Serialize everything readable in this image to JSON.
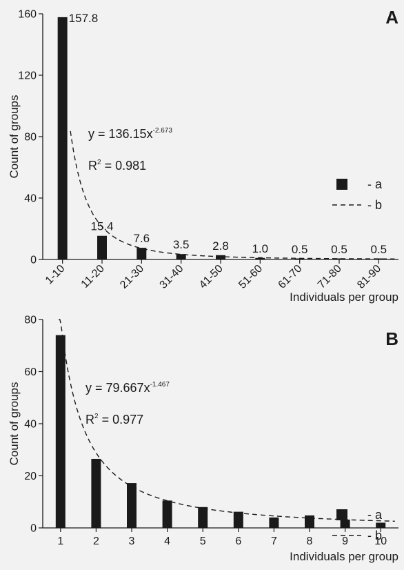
{
  "chart_data": [
    {
      "type": "bar",
      "panel_label": "A",
      "categories": [
        "1-10",
        "11-20",
        "21-30",
        "31-40",
        "41-50",
        "51-60",
        "61-70",
        "71-80",
        "81-90"
      ],
      "values": [
        157.8,
        15.4,
        7.6,
        3.5,
        2.8,
        1.0,
        0.5,
        0.5,
        0.5
      ],
      "data_labels": [
        "157.8",
        "15.4",
        "7.6",
        "3.5",
        "2.8",
        "1.0",
        "0.5",
        "0.5",
        "0.5"
      ],
      "xlabel": "Individuals per group",
      "ylabel": "Count of groups",
      "ylim": [
        0,
        160
      ],
      "yticks": [
        "0",
        "40",
        "80",
        "120",
        "160"
      ],
      "fit": {
        "a": 136.15,
        "b": -2.673,
        "x_start": 1.2
      },
      "equation": {
        "prefix": "y = 136.15x",
        "exponent": "-2.673"
      },
      "r2": {
        "r": "R",
        "sup": "2",
        "rest": " = 0.981"
      },
      "legend": {
        "bar_label": "- a",
        "line_label": "- b",
        "position": "right"
      },
      "grid": false
    },
    {
      "type": "bar",
      "panel_label": "B",
      "categories": [
        "1",
        "2",
        "3",
        "4",
        "5",
        "6",
        "7",
        "8",
        "9",
        "10"
      ],
      "values": [
        74,
        26.5,
        17.2,
        10.5,
        8.0,
        6.2,
        4.0,
        4.8,
        3.2,
        2.0
      ],
      "xlabel": "Individuals per group",
      "ylabel": "Count of groups",
      "ylim": [
        0,
        80
      ],
      "yticks": [
        "0",
        "20",
        "40",
        "60",
        "80"
      ],
      "fit": {
        "a": 79.667,
        "b": -1.467,
        "x_start": 0.95
      },
      "equation": {
        "prefix": "y = 79.667x",
        "exponent": "-1.467"
      },
      "r2": {
        "r": "R",
        "sup": "2",
        "rest": " = 0.977"
      },
      "legend": {
        "bar_label": "- a",
        "line_label": "- b",
        "position": "right"
      },
      "grid": false
    }
  ]
}
